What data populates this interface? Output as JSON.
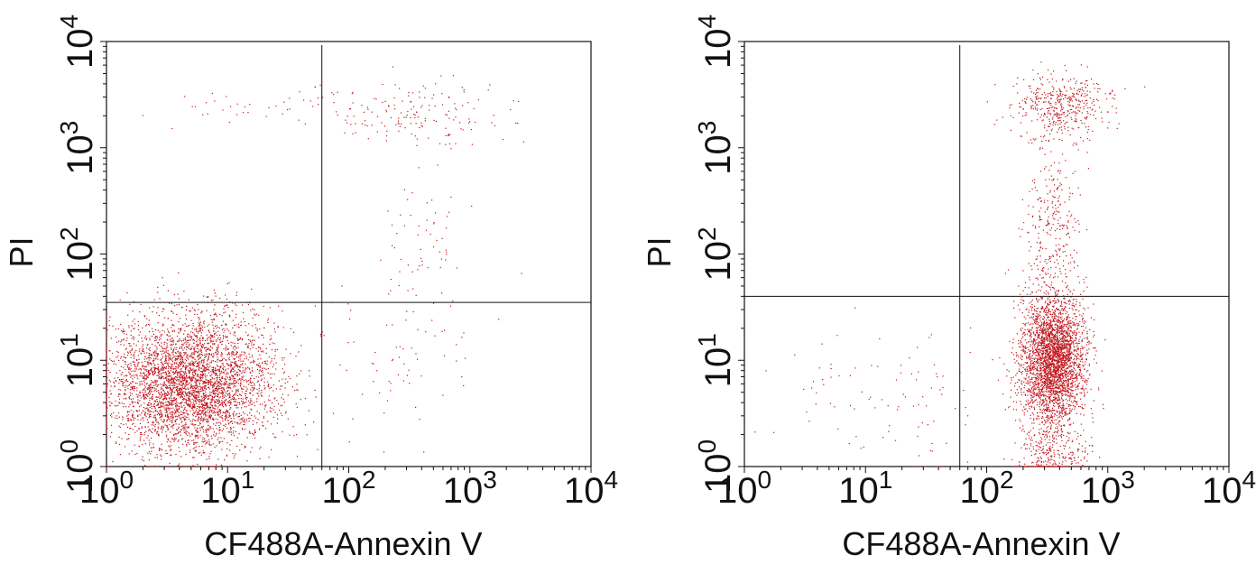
{
  "chart_data": [
    {
      "type": "scatter",
      "title": "",
      "xlabel": "CF488A-Annexin V",
      "ylabel": "PI",
      "xscale": "log",
      "yscale": "log",
      "xlim": [
        1,
        10000
      ],
      "ylim": [
        1,
        10000
      ],
      "xticks": [
        {
          "base": "10",
          "exp": "0"
        },
        {
          "base": "10",
          "exp": "1"
        },
        {
          "base": "10",
          "exp": "2"
        },
        {
          "base": "10",
          "exp": "3"
        },
        {
          "base": "10",
          "exp": "4"
        }
      ],
      "yticks": [
        {
          "base": "10",
          "exp": "0"
        },
        {
          "base": "10",
          "exp": "1"
        },
        {
          "base": "10",
          "exp": "2"
        },
        {
          "base": "10",
          "exp": "3"
        },
        {
          "base": "10",
          "exp": "4"
        }
      ],
      "quadrant_gate": {
        "x": 60,
        "y": 35
      },
      "point_color": "#c0141c",
      "grid": false,
      "legend": "none",
      "populations": [
        {
          "cx": 5,
          "cy": 6,
          "spread_x": 0.35,
          "spread_y": 0.32,
          "count": 4200
        },
        {
          "cx": 400,
          "cy": 2000,
          "spread_x": 0.35,
          "spread_y": 0.18,
          "count": 160
        },
        {
          "cx": 15,
          "cy": 2500,
          "spread_x": 0.55,
          "spread_y": 0.1,
          "count": 45
        },
        {
          "cx": 400,
          "cy": 100,
          "spread_x": 0.15,
          "spread_y": 0.35,
          "count": 60
        },
        {
          "cx": 250,
          "cy": 10,
          "spread_x": 0.35,
          "spread_y": 0.4,
          "count": 70
        }
      ]
    },
    {
      "type": "scatter",
      "title": "",
      "xlabel": "CF488A-Annexin V",
      "ylabel": "PI",
      "xscale": "log",
      "yscale": "log",
      "xlim": [
        1,
        10000
      ],
      "ylim": [
        1,
        10000
      ],
      "xticks": [
        {
          "base": "10",
          "exp": "0"
        },
        {
          "base": "10",
          "exp": "1"
        },
        {
          "base": "10",
          "exp": "2"
        },
        {
          "base": "10",
          "exp": "3"
        },
        {
          "base": "10",
          "exp": "4"
        }
      ],
      "yticks": [
        {
          "base": "10",
          "exp": "0"
        },
        {
          "base": "10",
          "exp": "1"
        },
        {
          "base": "10",
          "exp": "2"
        },
        {
          "base": "10",
          "exp": "3"
        },
        {
          "base": "10",
          "exp": "4"
        }
      ],
      "quadrant_gate": {
        "x": 60,
        "y": 40
      },
      "point_color": "#c0141c",
      "grid": false,
      "legend": "none",
      "populations": [
        {
          "cx": 350,
          "cy": 10,
          "spread_x": 0.13,
          "spread_y": 0.3,
          "count": 3200
        },
        {
          "cx": 400,
          "cy": 2500,
          "spread_x": 0.2,
          "spread_y": 0.15,
          "count": 450
        },
        {
          "cx": 350,
          "cy": 150,
          "spread_x": 0.12,
          "spread_y": 0.45,
          "count": 330
        },
        {
          "cx": 350,
          "cy": 1.3,
          "spread_x": 0.15,
          "spread_y": 0.15,
          "count": 300
        },
        {
          "cx": 15,
          "cy": 5,
          "spread_x": 0.45,
          "spread_y": 0.35,
          "count": 100
        }
      ]
    }
  ]
}
